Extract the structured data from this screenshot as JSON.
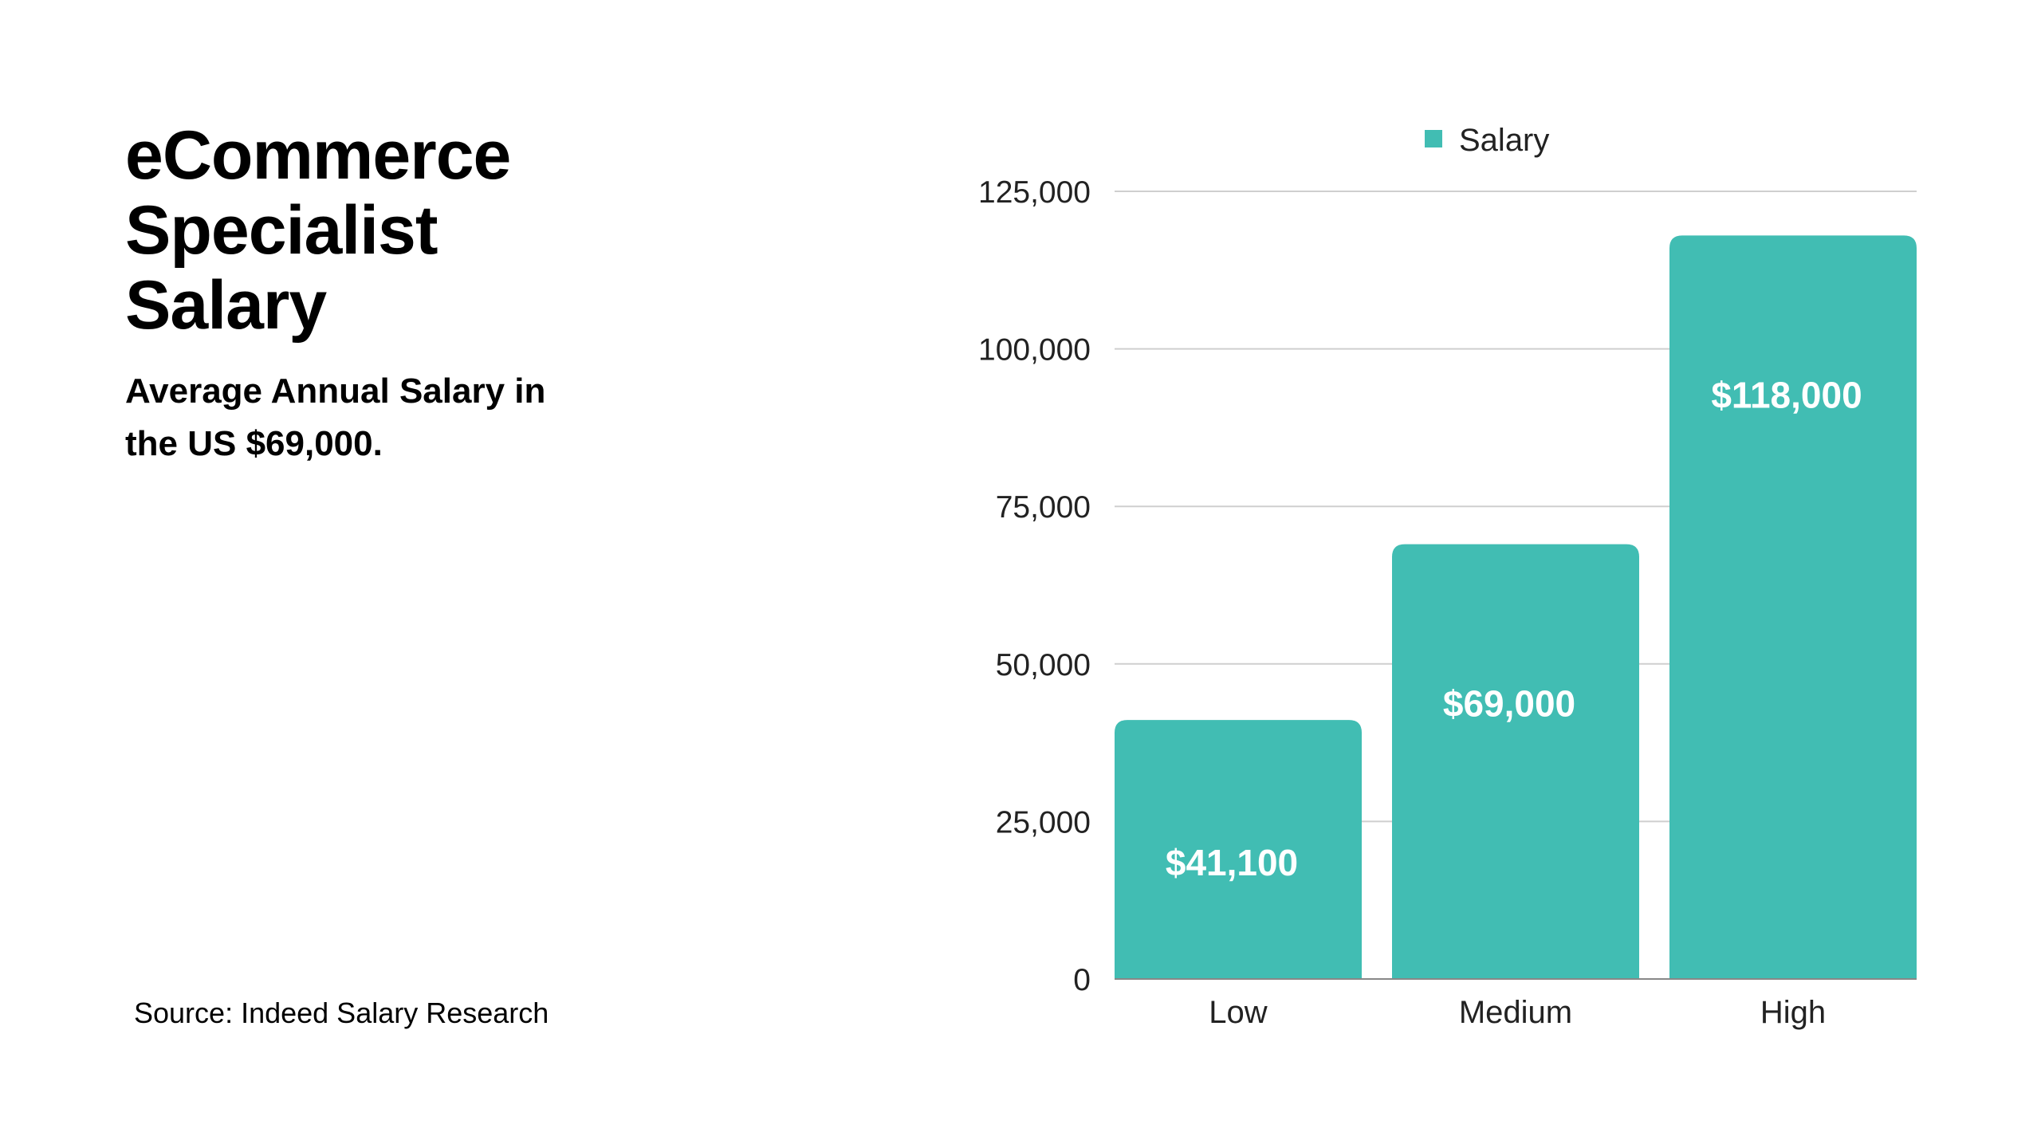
{
  "title_lines": [
    "eCommerce",
    "Specialist",
    "Salary"
  ],
  "subtitle": "Average Annual Salary in the US $69,000.",
  "source": "Source: Indeed Salary Research",
  "chart_data": {
    "type": "bar",
    "title": "eCommerce Specialist Salary",
    "categories": [
      "Low",
      "Medium",
      "High"
    ],
    "series": [
      {
        "name": "Salary",
        "values": [
          41100,
          69000,
          118000
        ],
        "color": "#41BDB3"
      }
    ],
    "data_labels": [
      "$41,100",
      "$69,000",
      "$118,000"
    ],
    "ylim": [
      0,
      125000
    ],
    "yticks": [
      0,
      25000,
      50000,
      75000,
      100000,
      125000
    ],
    "ytick_labels": [
      "0",
      "25,000",
      "50,000",
      "75,000",
      "100,000",
      "125,000"
    ],
    "grid": true,
    "legend": "top-center",
    "xlabel": "",
    "ylabel": ""
  }
}
